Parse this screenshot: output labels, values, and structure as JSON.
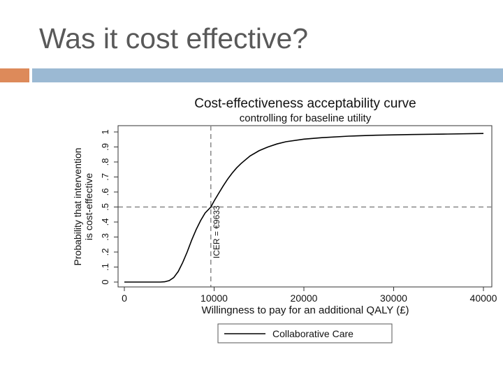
{
  "slide": {
    "title": "Was it cost effective?"
  },
  "colors": {
    "title_text": "#595959",
    "accent_orange": "#dd8a5a",
    "accent_blue": "#9bb9d3",
    "curve": "#000000",
    "reference_lines": "#888888"
  },
  "chart_data": {
    "type": "line",
    "title": "Cost-effectiveness acceptability curve",
    "subtitle": "controlling for baseline utility",
    "xlabel": "Willingness to pay for an additional QALY (£)",
    "ylabel_line1": "Probability that intervention",
    "ylabel_line2": "is cost-effective",
    "xlim": [
      0,
      40000
    ],
    "ylim": [
      0,
      1
    ],
    "x_ticks": [
      0,
      10000,
      20000,
      30000,
      40000
    ],
    "x_tick_labels": [
      "0",
      "10000",
      "20000",
      "30000",
      "40000"
    ],
    "y_ticks": [
      0,
      0.1,
      0.2,
      0.3,
      0.4,
      0.5,
      0.6,
      0.7,
      0.8,
      0.9,
      1
    ],
    "y_tick_labels": [
      "0",
      ".1",
      ".2",
      ".3",
      ".4",
      ".5",
      ".6",
      ".7",
      ".8",
      ".9",
      "1"
    ],
    "grid": false,
    "legend_position": "bottom",
    "series": [
      {
        "name": "Collaborative Care",
        "x": [
          0,
          4000,
          4500,
          5000,
          5500,
          6000,
          6500,
          7000,
          7500,
          8000,
          8500,
          9000,
          9633,
          10000,
          10500,
          11000,
          11500,
          12000,
          12500,
          13000,
          14000,
          15000,
          16000,
          17000,
          18000,
          20000,
          22000,
          25000,
          28000,
          32000,
          36000,
          40000
        ],
        "y": [
          0,
          0,
          0.002,
          0.01,
          0.03,
          0.07,
          0.13,
          0.2,
          0.28,
          0.35,
          0.41,
          0.46,
          0.5,
          0.54,
          0.59,
          0.64,
          0.685,
          0.725,
          0.76,
          0.79,
          0.84,
          0.875,
          0.9,
          0.92,
          0.935,
          0.952,
          0.962,
          0.972,
          0.978,
          0.983,
          0.986,
          0.99
        ]
      }
    ],
    "reference_lines": {
      "vertical_x": 9633,
      "horizontal_y": 0.5,
      "annotation": "ICER = €9633"
    }
  }
}
